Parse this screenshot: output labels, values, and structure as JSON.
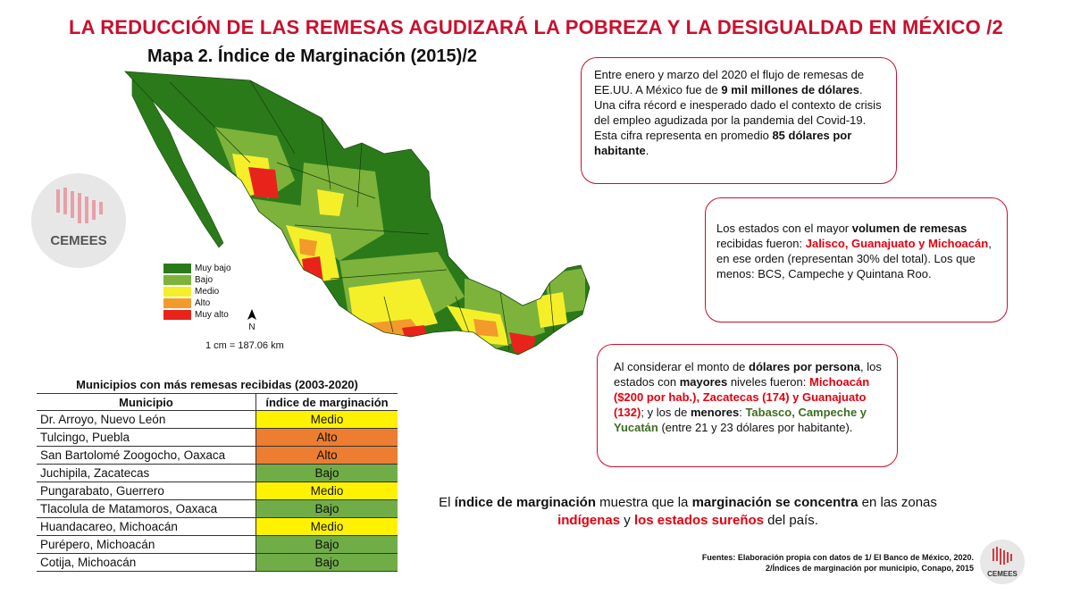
{
  "title": "LA REDUCCIÓN DE LAS REMESAS AGUDIZARÁ LA POBREZA Y LA DESIGUALDAD EN MÉXICO /2",
  "subtitle": "Mapa 2. Índice de Marginación (2015)/2",
  "legend": [
    {
      "label": "Muy bajo",
      "color": "#2b7a1a"
    },
    {
      "label": "Bajo",
      "color": "#7db33a"
    },
    {
      "label": "Medio",
      "color": "#f5ef2a"
    },
    {
      "label": "Alto",
      "color": "#f39a2c"
    },
    {
      "label": "Muy alto",
      "color": "#e8231b"
    }
  ],
  "north_label": "N",
  "scale_label": "1 cm = 187.06 km",
  "logo_text": "CEMEES",
  "box1": {
    "p1_a": "Entre enero y marzo del 2020 el flujo de remesas de EE.UU. A México fue de ",
    "p1_b": "9 mil millones de dólares",
    "p1_c": ".  Una cifra récord e inesperado dado el contexto de crisis del empleo agudizada por la pandemia del Covid-19.",
    "p2_a": "Esta cifra representa en promedio ",
    "p2_b": "85 dólares por habitante",
    "p2_c": "."
  },
  "box2": {
    "a": "Los estados con el mayor ",
    "b": "volumen de  remesas",
    "c": " recibidas fueron: ",
    "d": "Jalisco, Guanajuato y Michoacán",
    "e": ", en ese orden (representan 30% del total). Los que menos: BCS, Campeche y Quintana Roo."
  },
  "box3": {
    "a": "Al considerar el monto de ",
    "b": "dólares por persona",
    "c": ", los estados con ",
    "d": "mayores",
    "e": " niveles fueron: ",
    "f": "Michoacán ($200 por hab.), Zacatecas (174) y Guanajuato (132)",
    "g": "; y los de ",
    "h": "menores",
    "i": ": ",
    "j": "Tabasco, Campeche y Yucatán",
    "k": " (entre 21 y 23 dólares por habitante)."
  },
  "conclusion": {
    "a": "El ",
    "b": "índice de marginación",
    "c": " muestra que la ",
    "d": "marginación se concentra",
    "e": " en las zonas ",
    "f": "indígenas",
    "g": " y ",
    "h": "los estados sureños",
    "i": " del país."
  },
  "sources": {
    "line1": "Fuentes: Elaboración propia con datos de 1/ El Banco de México, 2020.",
    "line2": "2/Índices de marginación por municipio, Conapo, 2015"
  },
  "table": {
    "caption": "Municipios con más remesas recibidas (2003-2020)",
    "headers": [
      "Municipio",
      "índice de marginación"
    ],
    "rows": [
      {
        "municipio": "Dr. Arroyo, Nuevo León",
        "indice": "Medio",
        "color": "#fff200"
      },
      {
        "municipio": "Tulcingo, Puebla",
        "indice": "Alto",
        "color": "#ed7d31"
      },
      {
        "municipio": "San Bartolomé Zoogocho, Oaxaca",
        "indice": "Alto",
        "color": "#ed7d31"
      },
      {
        "municipio": "Juchipila, Zacatecas",
        "indice": "Bajo",
        "color": "#70ad47"
      },
      {
        "municipio": "Pungarabato, Guerrero",
        "indice": "Medio",
        "color": "#fff200"
      },
      {
        "municipio": "Tlacolula de Matamoros, Oaxaca",
        "indice": "Bajo",
        "color": "#70ad47"
      },
      {
        "municipio": "Huandacareo, Michoacán",
        "indice": "Medio",
        "color": "#fff200"
      },
      {
        "municipio": "Purépero, Michoacán",
        "indice": "Bajo",
        "color": "#70ad47"
      },
      {
        "municipio": "Cotija, Michoacán",
        "indice": "Bajo",
        "color": "#70ad47"
      }
    ]
  }
}
